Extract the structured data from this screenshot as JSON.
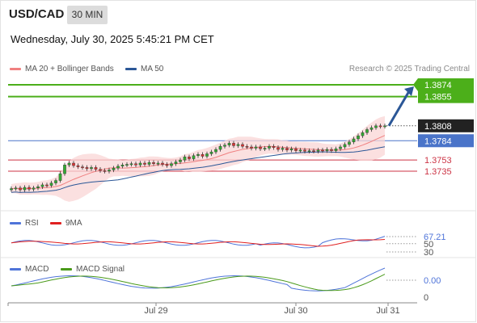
{
  "header": {
    "symbol": "USD/CAD",
    "timeframe": "30 MIN",
    "datetime": "Wednesday, July 30, 2025 5:45:21 PM CET",
    "source": "Research © 2025 Trading Central"
  },
  "legend": {
    "main": [
      {
        "label": "MA 20 + Bollinger Bands",
        "color": "#f08080"
      },
      {
        "label": "MA 50",
        "color": "#2b5797"
      }
    ],
    "rsi": [
      {
        "label": "RSI",
        "color": "#4f74d9"
      },
      {
        "label": "9MA",
        "color": "#e02020"
      }
    ],
    "macd": [
      {
        "label": "MACD",
        "color": "#4f74d9"
      },
      {
        "label": "MACD Signal",
        "color": "#4a9a1a"
      }
    ]
  },
  "colors": {
    "target": "#4caf1a",
    "pivot": "#4a74c9",
    "support": "#cc3344",
    "arrow": "#2b5797",
    "last_price_bg": "#222222",
    "bullish_candle": "#33aa33",
    "bearish_candle": "#dd3333",
    "band_fill": "#f9d6d6"
  },
  "chart_data": [
    {
      "type": "candlestick",
      "instrument": "USD/CAD",
      "interval": "30 MIN",
      "x_ticks": [
        "Jul 29",
        "Jul 30",
        "Jul 31"
      ],
      "last_price": 1.3808,
      "levels": [
        {
          "value": 1.3874,
          "label": "1.3874",
          "kind": "target"
        },
        {
          "value": 1.3855,
          "label": "1.3855",
          "kind": "target"
        },
        {
          "value": 1.3784,
          "label": "1.3784",
          "kind": "pivot"
        },
        {
          "value": 1.3753,
          "label": "1.3753",
          "kind": "support"
        },
        {
          "value": 1.3735,
          "label": "1.3735",
          "kind": "support"
        }
      ],
      "last_price_label": "1.3808",
      "forecast_arrow": {
        "from": 1.3808,
        "to": 1.3874
      },
      "close_series": [
        1.3707,
        1.3708,
        1.3705,
        1.3709,
        1.3706,
        1.3708,
        1.371,
        1.3713,
        1.3712,
        1.3716,
        1.372,
        1.3731,
        1.3745,
        1.3748,
        1.3744,
        1.3742,
        1.3741,
        1.3739,
        1.3741,
        1.3738,
        1.3736,
        1.3735,
        1.3737,
        1.374,
        1.3743,
        1.3745,
        1.3746,
        1.3747,
        1.3745,
        1.3748,
        1.3746,
        1.3749,
        1.3747,
        1.3748,
        1.3746,
        1.3744,
        1.3747,
        1.375,
        1.3753,
        1.3758,
        1.3755,
        1.376,
        1.3762,
        1.3759,
        1.3763,
        1.3766,
        1.377,
        1.3775,
        1.3777,
        1.378,
        1.3776,
        1.3778,
        1.3775,
        1.3774,
        1.3772,
        1.3774,
        1.3771,
        1.3772,
        1.3775,
        1.3773,
        1.377,
        1.3772,
        1.3769,
        1.3771,
        1.3768,
        1.3769,
        1.3767,
        1.3768,
        1.3767,
        1.3769,
        1.3768,
        1.377,
        1.3768,
        1.3771,
        1.3774,
        1.3778,
        1.3782,
        1.3787,
        1.3792,
        1.3797,
        1.3802,
        1.3805,
        1.3808,
        1.3807,
        1.3808
      ],
      "ylim": [
        1.368,
        1.39
      ]
    },
    {
      "type": "line",
      "name": "RSI",
      "levels": [
        {
          "value": 67.21,
          "label": "67.21"
        },
        {
          "value": 50,
          "label": "50"
        },
        {
          "value": 30,
          "label": "30"
        }
      ],
      "ylim": [
        20,
        100
      ]
    },
    {
      "type": "line",
      "name": "MACD",
      "levels": [
        {
          "value": 0.0,
          "label": "0.00"
        },
        {
          "value": 0,
          "label": "0"
        }
      ]
    }
  ]
}
